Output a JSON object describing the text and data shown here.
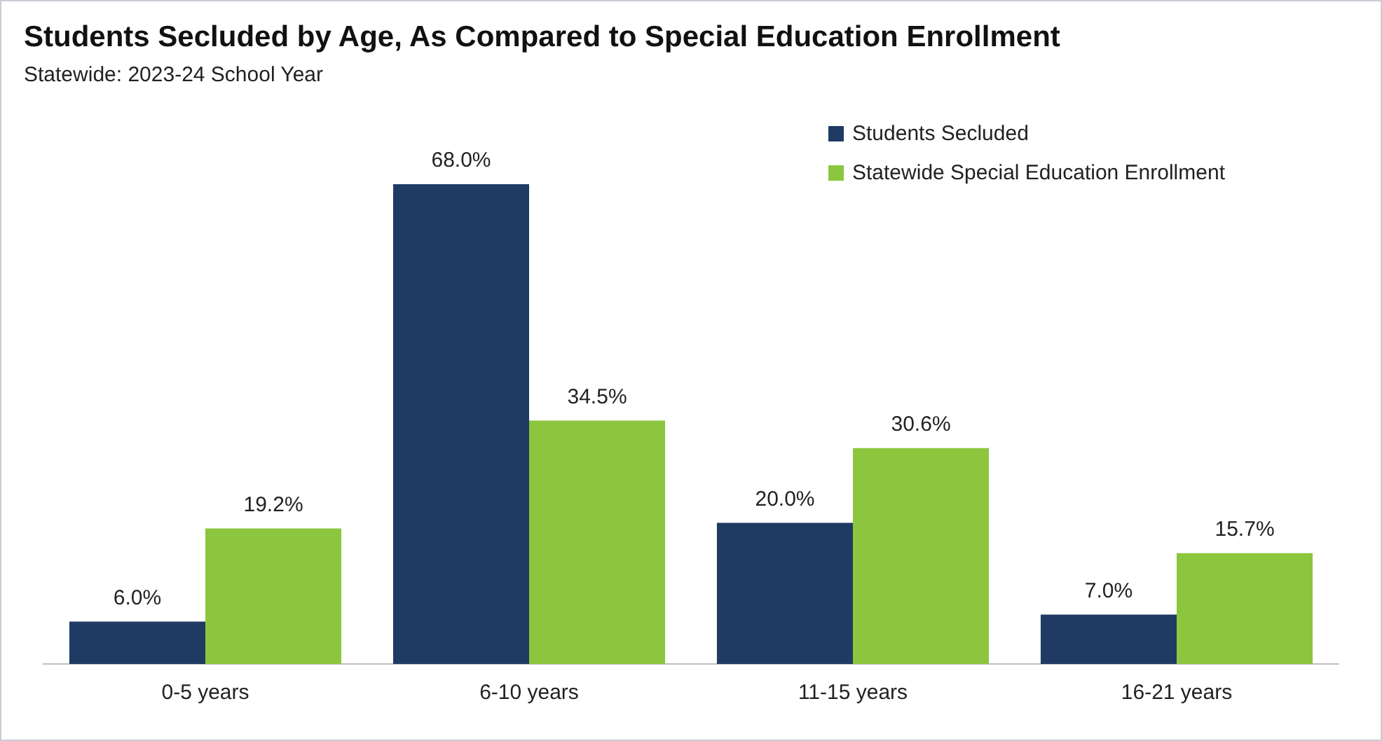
{
  "chart_data": {
    "type": "bar",
    "title": "Students Secluded by Age, As Compared to Special Education Enrollment",
    "subtitle": "Statewide: 2023-24 School Year",
    "categories": [
      "0-5 years",
      "6-10 years",
      "11-15 years",
      "16-21 years"
    ],
    "series": [
      {
        "name": "Students Secluded",
        "color": "#1f3b63",
        "values": [
          6.0,
          68.0,
          20.0,
          7.0
        ],
        "value_labels": [
          "6.0%",
          "68.0%",
          "20.0%",
          "7.0%"
        ]
      },
      {
        "name": "Statewide Special Education Enrollment",
        "color": "#8cc63f",
        "values": [
          19.2,
          34.5,
          30.6,
          15.7
        ],
        "value_labels": [
          "19.2%",
          "34.5%",
          "30.6%",
          "15.7%"
        ]
      }
    ],
    "tick_labels": "x",
    "grid": false,
    "legend": "top right"
  }
}
